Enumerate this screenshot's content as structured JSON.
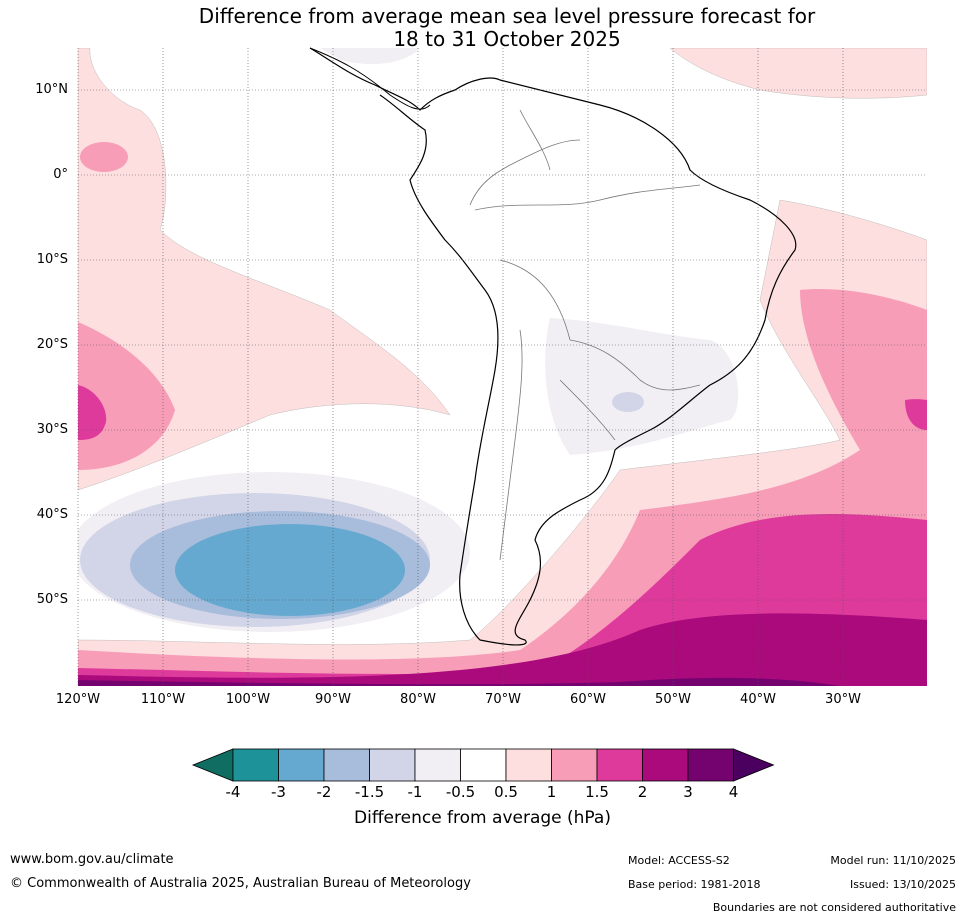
{
  "title": {
    "line1": "Difference from average mean sea level pressure forecast for",
    "line2": "18 to 31 October 2025"
  },
  "axes": {
    "lat_labels": [
      "10°N",
      "0°",
      "10°S",
      "20°S",
      "30°S",
      "40°S",
      "50°S"
    ],
    "lon_labels": [
      "120°W",
      "110°W",
      "100°W",
      "90°W",
      "80°W",
      "70°W",
      "60°W",
      "50°W",
      "40°W",
      "30°W"
    ]
  },
  "colorbar": {
    "tick_labels": [
      "-4",
      "-3",
      "-2",
      "-1.5",
      "-1",
      "-0.5",
      "0.5",
      "1",
      "1.5",
      "2",
      "3",
      "4"
    ],
    "colors": [
      "#0f6e61",
      "#1e9299",
      "#66a9d0",
      "#a8bcdb",
      "#d2d4e8",
      "#f2eff4",
      "#ffffff",
      "#fddfdf",
      "#f89db8",
      "#de3a9c",
      "#ab0a7c",
      "#740370",
      "#4b0060"
    ],
    "title": "Difference from average (hPa)"
  },
  "footer": {
    "url": "www.bom.gov.au/climate",
    "copyright": "© Commonwealth of Australia 2025, Australian Bureau of Meteorology",
    "model": "Model: ACCESS-S2",
    "base_period": "Base period: 1981-2018",
    "model_run": "Model run: 11/10/2025",
    "issued": "Issued: 13/10/2025",
    "disclaimer": "Boundaries are not considered authoritative"
  }
}
